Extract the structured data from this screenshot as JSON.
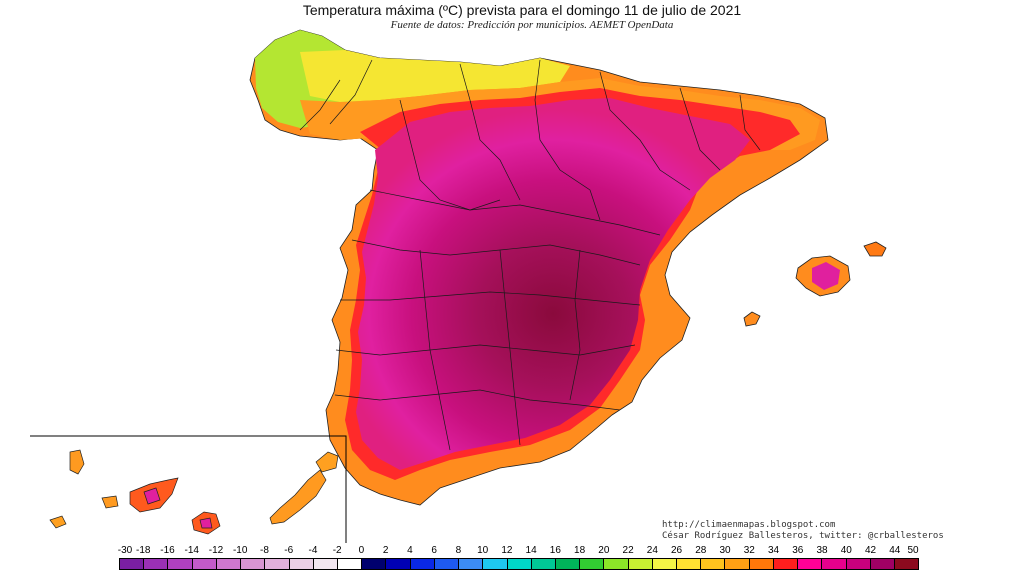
{
  "map": {
    "title": "Temperatura máxima (ºC) prevista para el domingo 11 de julio de 2021",
    "subtitle": "Fuente de datos: Predicción por municipios. AEMET OpenData",
    "credits": [
      "http://climaenmapas.blogspot.com",
      "César Rodríguez Ballesteros, twitter: @crballesteros"
    ]
  },
  "legend": {
    "labels": [
      "-30",
      "-18",
      "-16",
      "-14",
      "-12",
      "-10",
      "-8",
      "-6",
      "-4",
      "-2",
      "0",
      "2",
      "4",
      "6",
      "8",
      "10",
      "12",
      "14",
      "16",
      "18",
      "20",
      "22",
      "24",
      "26",
      "28",
      "30",
      "32",
      "34",
      "36",
      "38",
      "40",
      "42",
      "44",
      "50"
    ],
    "colors": [
      "#7a1fa2",
      "#9b30b5",
      "#b040c0",
      "#c35ac9",
      "#cf78cf",
      "#d995d3",
      "#e2b0dc",
      "#ead0e6",
      "#f2e6f0",
      "#ffffff",
      "#00006e",
      "#0000b4",
      "#0a28e6",
      "#1e5af0",
      "#3c8cf5",
      "#1ec8f0",
      "#00d7c8",
      "#00c896",
      "#00b45a",
      "#32cd32",
      "#8ce628",
      "#c8f032",
      "#f5f546",
      "#ffe132",
      "#ffc31e",
      "#ffa014",
      "#ff780a",
      "#ff1e1e",
      "#ff0096",
      "#e6008c",
      "#c8007d",
      "#a00064",
      "#8c0a1e"
    ]
  }
}
